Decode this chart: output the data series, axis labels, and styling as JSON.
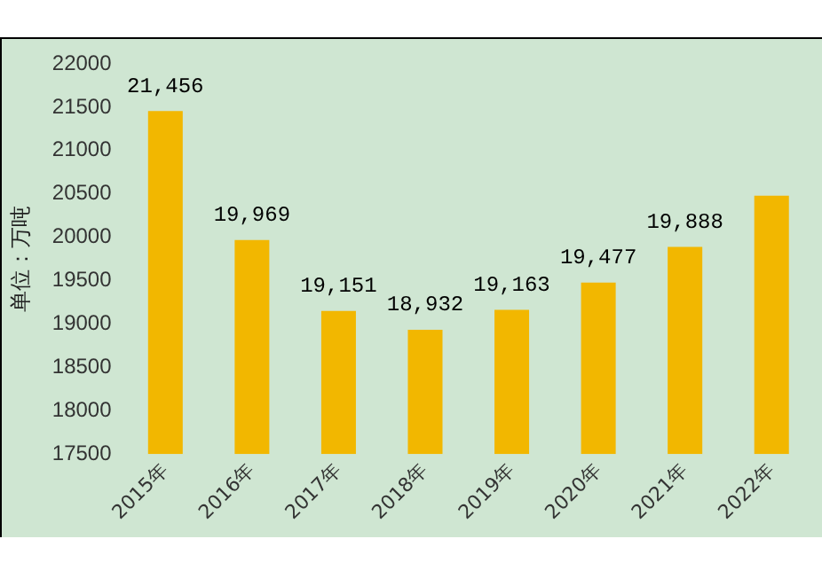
{
  "chart_data": {
    "type": "bar",
    "ylabel": "单位：万吨",
    "categories": [
      "2015年",
      "2016年",
      "2017年",
      "2018年",
      "2019年",
      "2020年",
      "2021年",
      "2022年"
    ],
    "values": [
      21456,
      19969,
      19151,
      18932,
      19163,
      19477,
      19888,
      20480
    ],
    "value_labels": [
      "21,456",
      "19,969",
      "19,151",
      "18,932",
      "19,163",
      "19,477",
      "19,888",
      null
    ],
    "color": "#f2b700",
    "ylim": [
      17500,
      22000
    ],
    "yticks": [
      17500,
      18000,
      18500,
      19000,
      19500,
      20000,
      20500,
      21000,
      21500,
      22000
    ],
    "grid": false,
    "legend": false
  }
}
